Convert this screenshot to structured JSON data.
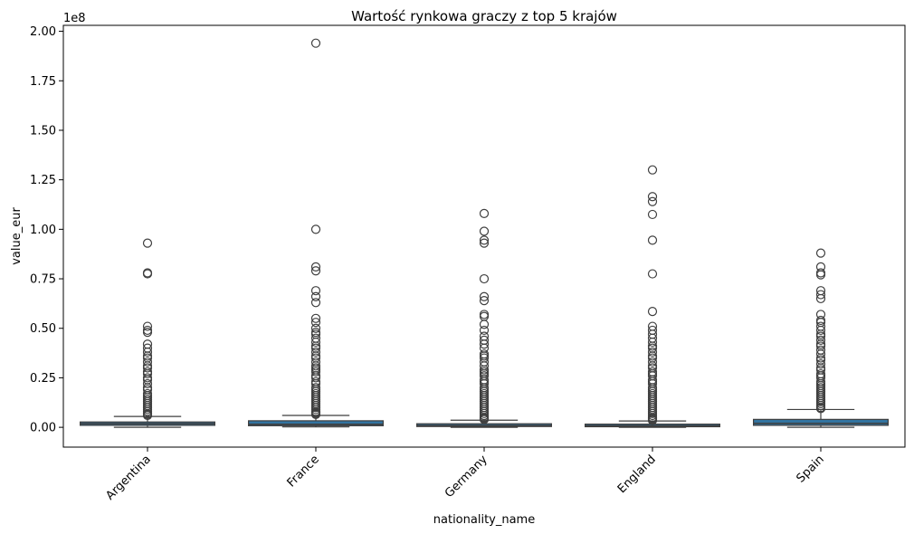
{
  "chart_data": {
    "type": "box",
    "title": "Wartość rynkowa graczy z top 5 krajów",
    "xlabel": "nationality_name",
    "ylabel": "value_eur",
    "y_offset_label": "1e8",
    "ylim": [
      -0.1,
      2.03
    ],
    "yticks": [
      0.0,
      0.25,
      0.5,
      0.75,
      1.0,
      1.25,
      1.5,
      1.75,
      2.0
    ],
    "ytick_labels": [
      "0.00",
      "0.25",
      "0.50",
      "0.75",
      "1.00",
      "1.25",
      "1.50",
      "1.75",
      "2.00"
    ],
    "units_note": "values in units of 1e8 EUR",
    "box_color": "#3274a1",
    "edge_color": "#3f3f3f",
    "categories": [
      "Argentina",
      "France",
      "Germany",
      "England",
      "Spain"
    ],
    "boxes": [
      {
        "category": "Argentina",
        "whisker_low": 0.0,
        "q1": 0.01,
        "median": 0.018,
        "q3": 0.027,
        "whisker_high": 0.055,
        "fliers": [
          0.93,
          0.78,
          0.775,
          0.51,
          0.49,
          0.48,
          0.42,
          0.4,
          0.38,
          0.36,
          0.35,
          0.33,
          0.31,
          0.3,
          0.28,
          0.27,
          0.25,
          0.24,
          0.22,
          0.2,
          0.19,
          0.17,
          0.16,
          0.15,
          0.14,
          0.13,
          0.12,
          0.11,
          0.1,
          0.09,
          0.08,
          0.07,
          0.065,
          0.06
        ]
      },
      {
        "category": "France",
        "whisker_low": 0.002,
        "q1": 0.008,
        "median": 0.015,
        "q3": 0.033,
        "whisker_high": 0.06,
        "fliers": [
          1.94,
          1.0,
          0.81,
          0.79,
          0.69,
          0.66,
          0.63,
          0.55,
          0.53,
          0.5,
          0.48,
          0.47,
          0.45,
          0.43,
          0.41,
          0.4,
          0.38,
          0.36,
          0.35,
          0.33,
          0.31,
          0.3,
          0.29,
          0.28,
          0.26,
          0.25,
          0.23,
          0.22,
          0.2,
          0.19,
          0.18,
          0.17,
          0.16,
          0.15,
          0.14,
          0.13,
          0.12,
          0.11,
          0.1,
          0.09,
          0.08,
          0.075,
          0.07,
          0.065
        ]
      },
      {
        "category": "Germany",
        "whisker_low": 0.0,
        "q1": 0.004,
        "median": 0.009,
        "q3": 0.018,
        "whisker_high": 0.036,
        "fliers": [
          1.08,
          0.99,
          0.945,
          0.93,
          0.75,
          0.66,
          0.64,
          0.57,
          0.56,
          0.52,
          0.49,
          0.46,
          0.44,
          0.42,
          0.4,
          0.37,
          0.36,
          0.35,
          0.33,
          0.31,
          0.29,
          0.28,
          0.27,
          0.26,
          0.24,
          0.23,
          0.22,
          0.2,
          0.19,
          0.18,
          0.17,
          0.16,
          0.15,
          0.14,
          0.13,
          0.12,
          0.11,
          0.1,
          0.09,
          0.08,
          0.07,
          0.06,
          0.05,
          0.045,
          0.04
        ]
      },
      {
        "category": "England",
        "whisker_low": 0.0,
        "q1": 0.003,
        "median": 0.008,
        "q3": 0.016,
        "whisker_high": 0.032,
        "fliers": [
          1.3,
          1.165,
          1.14,
          1.075,
          0.945,
          0.775,
          0.585,
          0.51,
          0.49,
          0.47,
          0.45,
          0.43,
          0.41,
          0.4,
          0.38,
          0.36,
          0.35,
          0.33,
          0.31,
          0.3,
          0.28,
          0.27,
          0.26,
          0.24,
          0.23,
          0.22,
          0.2,
          0.19,
          0.18,
          0.17,
          0.16,
          0.15,
          0.14,
          0.13,
          0.12,
          0.11,
          0.1,
          0.09,
          0.08,
          0.07,
          0.06,
          0.05,
          0.045,
          0.04,
          0.035
        ]
      },
      {
        "category": "Spain",
        "whisker_low": 0.0,
        "q1": 0.01,
        "median": 0.02,
        "q3": 0.04,
        "whisker_high": 0.09,
        "fliers": [
          0.88,
          0.81,
          0.78,
          0.77,
          0.69,
          0.67,
          0.65,
          0.57,
          0.54,
          0.53,
          0.51,
          0.49,
          0.47,
          0.46,
          0.44,
          0.42,
          0.41,
          0.39,
          0.37,
          0.35,
          0.34,
          0.32,
          0.3,
          0.29,
          0.27,
          0.26,
          0.25,
          0.23,
          0.22,
          0.21,
          0.2,
          0.19,
          0.18,
          0.17,
          0.16,
          0.15,
          0.14,
          0.13,
          0.12,
          0.11,
          0.1,
          0.095
        ]
      }
    ],
    "grid": false,
    "legend": "none"
  }
}
